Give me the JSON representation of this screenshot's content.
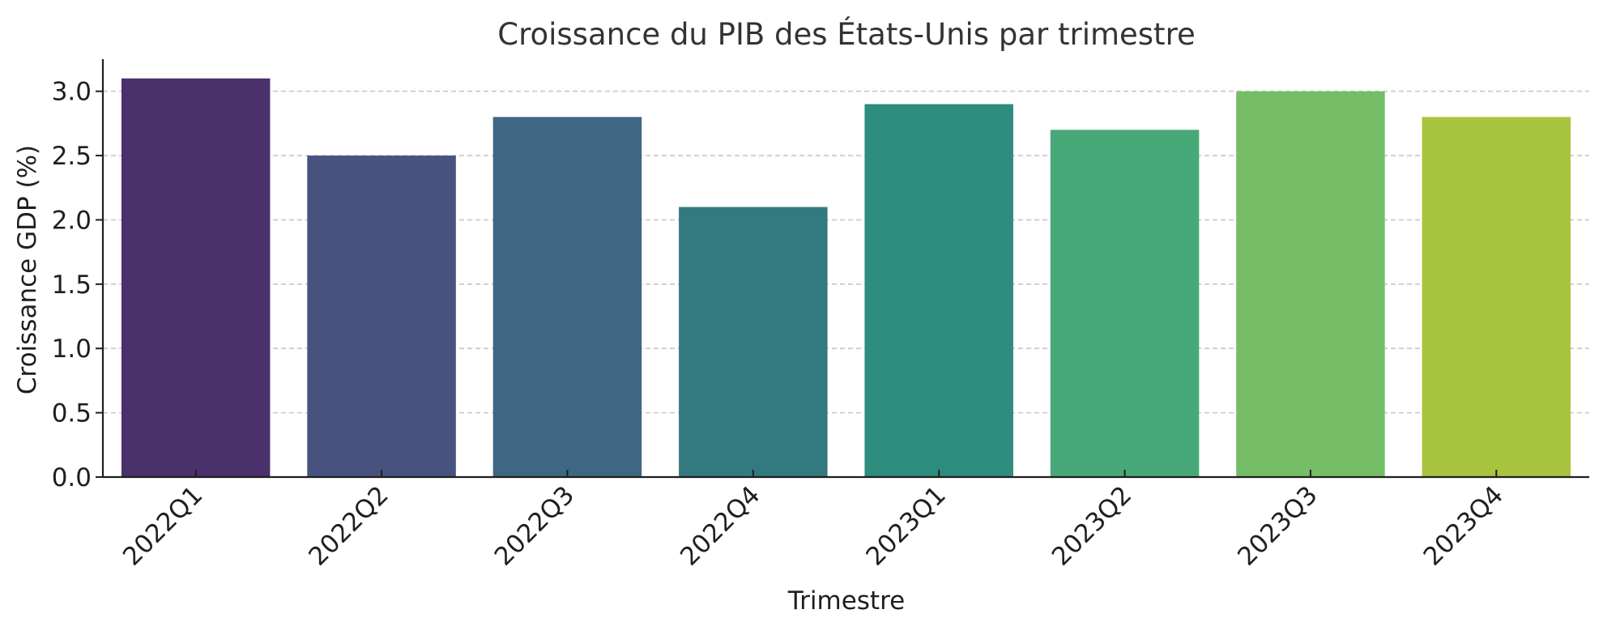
{
  "chart_data": {
    "type": "bar",
    "title": "Croissance du PIB des États-Unis par trimestre",
    "xlabel": "Trimestre",
    "ylabel": "Croissance GDP (%)",
    "categories": [
      "2022Q1",
      "2022Q2",
      "2022Q3",
      "2022Q4",
      "2023Q1",
      "2023Q2",
      "2023Q3",
      "2023Q4"
    ],
    "values": [
      3.1,
      2.5,
      2.8,
      2.1,
      2.9,
      2.7,
      3.0,
      2.8
    ],
    "colors": [
      "#4a316c",
      "#47527e",
      "#3d6782",
      "#337a80",
      "#2d8c7d",
      "#47a878",
      "#76bd68",
      "#a8c43f"
    ],
    "ylim": [
      0,
      3.25
    ],
    "yticks": [
      "0.0",
      "0.5",
      "1.0",
      "1.5",
      "2.0",
      "2.5",
      "3.0"
    ],
    "grid": "y-dashed",
    "legend": "none"
  }
}
